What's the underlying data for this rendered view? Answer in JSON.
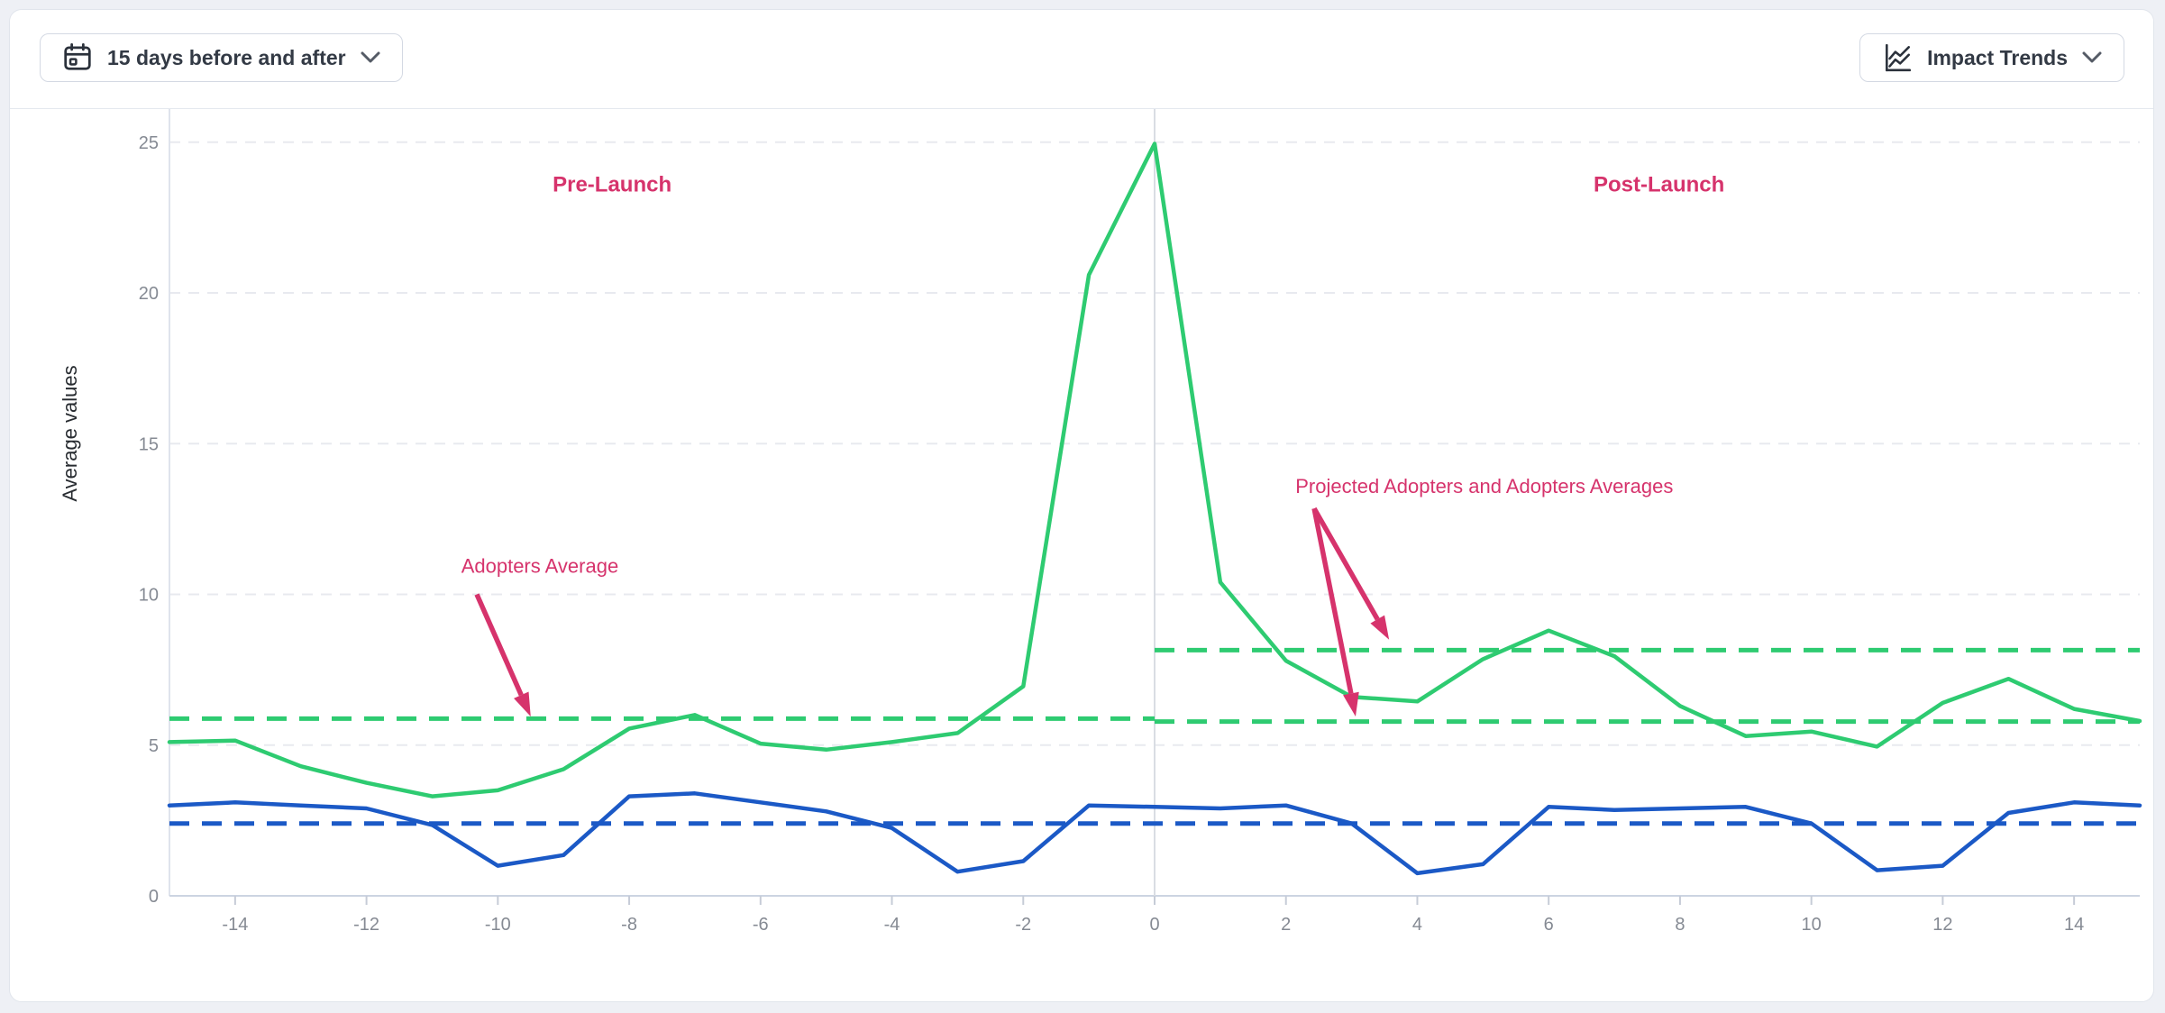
{
  "toolbar": {
    "date_range_label": "15 days before and after",
    "trends_label": "Impact Trends"
  },
  "colors": {
    "green": "#2ecb71",
    "blue": "#1b59c6",
    "pink": "#d6336c",
    "grid": "#e8eaef",
    "axis": "#ccd4e2",
    "zero_line": "#d9dde3",
    "tick_text": "#858a93",
    "axis_title": "#272b30"
  },
  "chart_data": {
    "type": "line",
    "title": "",
    "xlabel": "",
    "ylabel": "Average values",
    "xlim": [
      -15,
      15
    ],
    "ylim": [
      0,
      26.1
    ],
    "xticks": [
      -14,
      -12,
      -10,
      -8,
      -6,
      -4,
      -2,
      0,
      2,
      4,
      6,
      8,
      10,
      12,
      14
    ],
    "yticks": [
      0,
      5,
      10,
      15,
      20,
      25
    ],
    "grid": "dashed-horizontal",
    "vertical_line_x": 0,
    "x": [
      -15,
      -14,
      -13,
      -12,
      -11,
      -10,
      -9,
      -8,
      -7,
      -6,
      -5,
      -4,
      -3,
      -2,
      -1,
      0,
      1,
      2,
      3,
      4,
      5,
      6,
      7,
      8,
      9,
      10,
      11,
      12,
      13,
      14,
      15
    ],
    "series": [
      {
        "key": "green_line",
        "label_hint": "Adopters (solid green)",
        "style": "solid",
        "color_ref": "green",
        "values": [
          5.1,
          5.15,
          4.3,
          3.75,
          3.3,
          3.5,
          4.2,
          5.55,
          6.0,
          5.05,
          4.85,
          5.1,
          5.4,
          6.95,
          20.6,
          24.95,
          10.4,
          7.8,
          6.6,
          6.45,
          7.85,
          8.8,
          7.95,
          6.3,
          5.3,
          5.45,
          4.95,
          6.4,
          7.2,
          6.2,
          5.8
        ]
      },
      {
        "key": "blue_line",
        "label_hint": "solid blue series",
        "style": "solid",
        "color_ref": "blue",
        "values": [
          3.0,
          3.1,
          3.0,
          2.9,
          2.35,
          1.0,
          1.35,
          3.3,
          3.4,
          3.1,
          2.8,
          2.25,
          0.8,
          1.15,
          3.0,
          2.95,
          2.9,
          3.0,
          2.4,
          0.75,
          1.05,
          2.95,
          2.85,
          2.9,
          2.95,
          2.4,
          0.85,
          1.0,
          2.75,
          3.1,
          3.0
        ]
      }
    ],
    "reference_lines": [
      {
        "key": "adopters-average-pre",
        "value": 5.88,
        "x1": -15,
        "x2": 0,
        "style": "dashed",
        "color_ref": "green"
      },
      {
        "key": "projected-adopters-average-post",
        "value": 5.78,
        "x1": 0,
        "x2": 15,
        "style": "dashed",
        "color_ref": "green"
      },
      {
        "key": "adopters-average-post",
        "value": 8.15,
        "x1": 0,
        "x2": 15,
        "style": "dashed",
        "color_ref": "green"
      },
      {
        "key": "blue-average",
        "value": 2.4,
        "x1": -15,
        "x2": 15,
        "style": "dashed",
        "color_ref": "blue"
      }
    ],
    "annotations": [
      {
        "key": "pre-launch",
        "text": "Pre-Launch",
        "x": -8.26,
        "y": 23.6,
        "bold": true,
        "size": 24,
        "arrows": []
      },
      {
        "key": "post-launch",
        "text": "Post-Launch",
        "x": 7.68,
        "y": 23.6,
        "bold": true,
        "size": 24,
        "arrows": []
      },
      {
        "key": "adopters-average",
        "text": "Adopters Average",
        "x": -9.36,
        "y": 10.95,
        "bold": false,
        "size": 22,
        "arrows": [
          {
            "x1": -10.32,
            "y1": 10.0,
            "x2": -9.5,
            "y2": 5.95
          }
        ]
      },
      {
        "key": "projected-and-adopters-averages",
        "text": "Projected Adopters and Adopters Averages",
        "x": 5.02,
        "y": 13.6,
        "bold": false,
        "size": 22,
        "arrows": [
          {
            "x1": 2.43,
            "y1": 12.85,
            "x2": 3.57,
            "y2": 8.5
          },
          {
            "x1": 2.43,
            "y1": 12.85,
            "x2": 3.06,
            "y2": 5.95
          }
        ]
      }
    ]
  }
}
